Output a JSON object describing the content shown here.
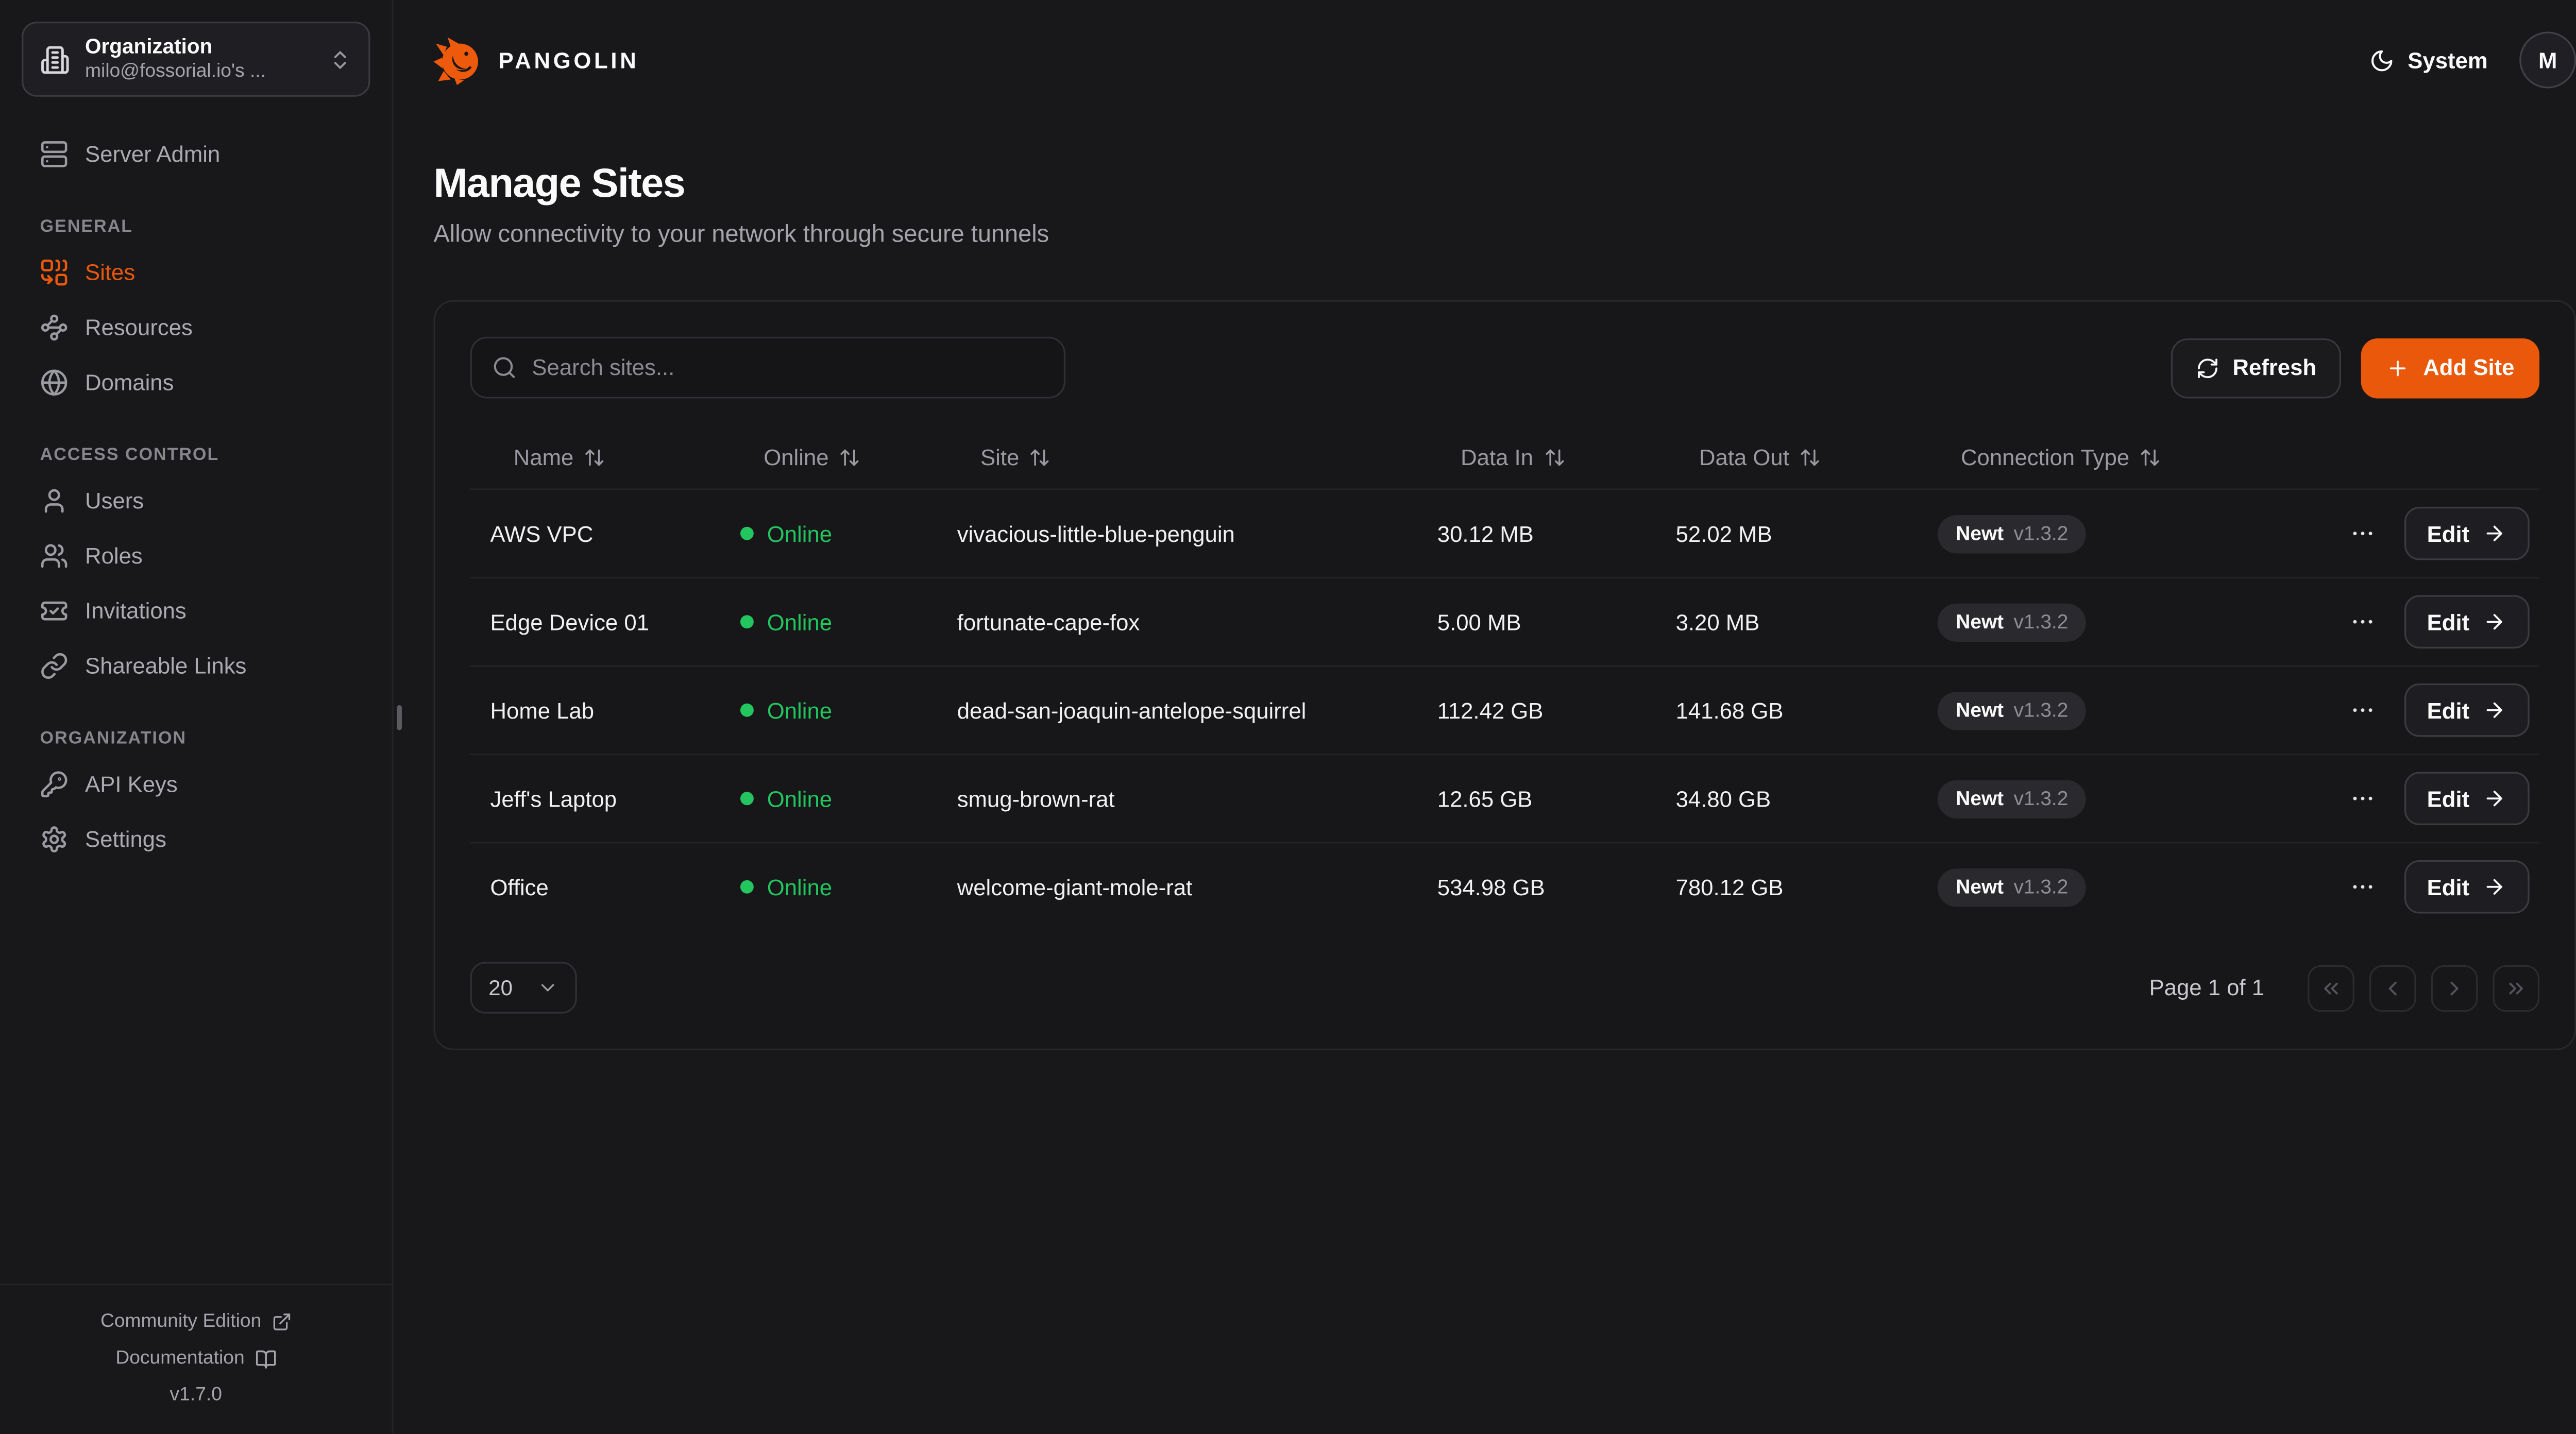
{
  "colors": {
    "accent": "#ea580c",
    "online": "#22c55e"
  },
  "sidebar": {
    "org_selector": {
      "label": "Organization",
      "value": "milo@fossorial.io's ..."
    },
    "server_admin_label": "Server Admin",
    "sections": [
      {
        "label": "GENERAL",
        "items": [
          {
            "label": "Sites"
          },
          {
            "label": "Resources"
          },
          {
            "label": "Domains"
          }
        ]
      },
      {
        "label": "ACCESS CONTROL",
        "items": [
          {
            "label": "Users"
          },
          {
            "label": "Roles"
          },
          {
            "label": "Invitations"
          },
          {
            "label": "Shareable Links"
          }
        ]
      },
      {
        "label": "ORGANIZATION",
        "items": [
          {
            "label": "API Keys"
          },
          {
            "label": "Settings"
          }
        ]
      }
    ],
    "footer": {
      "community": "Community Edition",
      "documentation": "Documentation",
      "version": "v1.7.0"
    }
  },
  "topbar": {
    "brand": "PANGOLIN",
    "theme_label": "System",
    "avatar_initial": "M"
  },
  "page": {
    "title": "Manage Sites",
    "subtitle": "Allow connectivity to your network through secure tunnels"
  },
  "toolbar": {
    "search_placeholder": "Search sites...",
    "refresh_label": "Refresh",
    "add_site_label": "Add Site"
  },
  "table": {
    "columns": [
      "Name",
      "Online",
      "Site",
      "Data In",
      "Data Out",
      "Connection Type"
    ],
    "rows": [
      {
        "name": "AWS VPC",
        "status": "Online",
        "site": "vivacious-little-blue-penguin",
        "data_in": "30.12 MB",
        "data_out": "52.02 MB",
        "conn_name": "Newt",
        "conn_version": "v1.3.2",
        "edit_label": "Edit"
      },
      {
        "name": "Edge Device 01",
        "status": "Online",
        "site": "fortunate-cape-fox",
        "data_in": "5.00 MB",
        "data_out": "3.20 MB",
        "conn_name": "Newt",
        "conn_version": "v1.3.2",
        "edit_label": "Edit"
      },
      {
        "name": "Home Lab",
        "status": "Online",
        "site": "dead-san-joaquin-antelope-squirrel",
        "data_in": "112.42 GB",
        "data_out": "141.68 GB",
        "conn_name": "Newt",
        "conn_version": "v1.3.2",
        "edit_label": "Edit"
      },
      {
        "name": "Jeff's Laptop",
        "status": "Online",
        "site": "smug-brown-rat",
        "data_in": "12.65 GB",
        "data_out": "34.80 GB",
        "conn_name": "Newt",
        "conn_version": "v1.3.2",
        "edit_label": "Edit"
      },
      {
        "name": "Office",
        "status": "Online",
        "site": "welcome-giant-mole-rat",
        "data_in": "534.98 GB",
        "data_out": "780.12 GB",
        "conn_name": "Newt",
        "conn_version": "v1.3.2",
        "edit_label": "Edit"
      }
    ]
  },
  "pagination": {
    "page_size": "20",
    "page_info": "Page 1 of 1"
  }
}
